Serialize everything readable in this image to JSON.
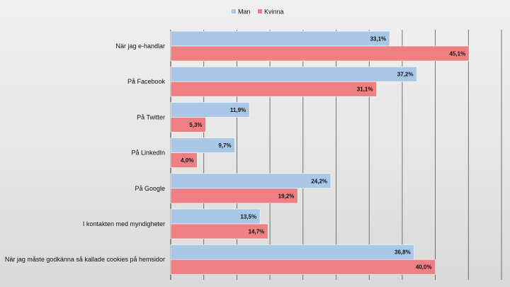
{
  "chart_data": {
    "type": "bar",
    "orientation": "horizontal",
    "categories": [
      "När jag e-handlar",
      "På Facebook",
      "På Twitter",
      "På LinkedIn",
      "På Google",
      "I kontakten med myndigheter",
      "När jag måste godkänna så kallade cookies på hemsidor"
    ],
    "series": [
      {
        "name": "Man",
        "color": "#a9c7e6",
        "values": [
          33.1,
          37.2,
          11.9,
          9.7,
          24.2,
          13.5,
          36.8
        ],
        "labels": [
          "33,1%",
          "37,2%",
          "11,9%",
          "9,7%",
          "24,2%",
          "13,5%",
          "36,8%"
        ]
      },
      {
        "name": "Kvinna",
        "color": "#ef7f82",
        "values": [
          45.1,
          31.1,
          5.3,
          4.0,
          19.2,
          14.7,
          40.0
        ],
        "labels": [
          "45,1%",
          "31,1%",
          "5,3%",
          "4,0%",
          "19,2%",
          "14,7%",
          "40,0%"
        ]
      }
    ],
    "xlim": [
      0,
      50
    ],
    "grid": true,
    "gridline_step": 5,
    "legend_position": "top-center",
    "title": "",
    "xlabel": "",
    "ylabel": ""
  }
}
